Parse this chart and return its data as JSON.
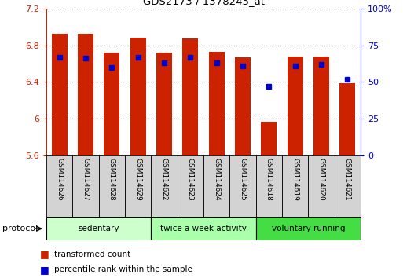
{
  "title": "GDS2173 / 1378245_at",
  "samples": [
    "GSM114626",
    "GSM114627",
    "GSM114628",
    "GSM114629",
    "GSM114622",
    "GSM114623",
    "GSM114624",
    "GSM114625",
    "GSM114618",
    "GSM114619",
    "GSM114620",
    "GSM114621"
  ],
  "bar_values": [
    6.92,
    6.92,
    6.72,
    6.88,
    6.72,
    6.87,
    6.73,
    6.67,
    5.97,
    6.68,
    6.68,
    6.39
  ],
  "blue_dot_percentile": [
    67,
    66,
    60,
    67,
    63,
    67,
    63,
    61,
    47,
    61,
    62,
    52
  ],
  "ymin": 5.6,
  "ymax": 7.2,
  "yticks": [
    5.6,
    6.0,
    6.4,
    6.8,
    7.2
  ],
  "ytick_labels": [
    "5.6",
    "6",
    "6.4",
    "6.8",
    "7.2"
  ],
  "right_yticks": [
    0,
    25,
    50,
    75,
    100
  ],
  "right_ytick_labels": [
    "0",
    "25",
    "50",
    "75",
    "100%"
  ],
  "bar_color": "#cc2200",
  "dot_color": "#0000cc",
  "groups": [
    {
      "label": "sedentary",
      "start": 0,
      "end": 4,
      "color": "#ccffcc"
    },
    {
      "label": "twice a week activity",
      "start": 4,
      "end": 8,
      "color": "#aaffaa"
    },
    {
      "label": "voluntary running",
      "start": 8,
      "end": 12,
      "color": "#44dd44"
    }
  ],
  "protocol_label": "protocol",
  "legend_items": [
    {
      "label": "transformed count",
      "color": "#cc2200"
    },
    {
      "label": "percentile rank within the sample",
      "color": "#0000cc"
    }
  ],
  "bar_width": 0.6,
  "background_color": "#ffffff"
}
